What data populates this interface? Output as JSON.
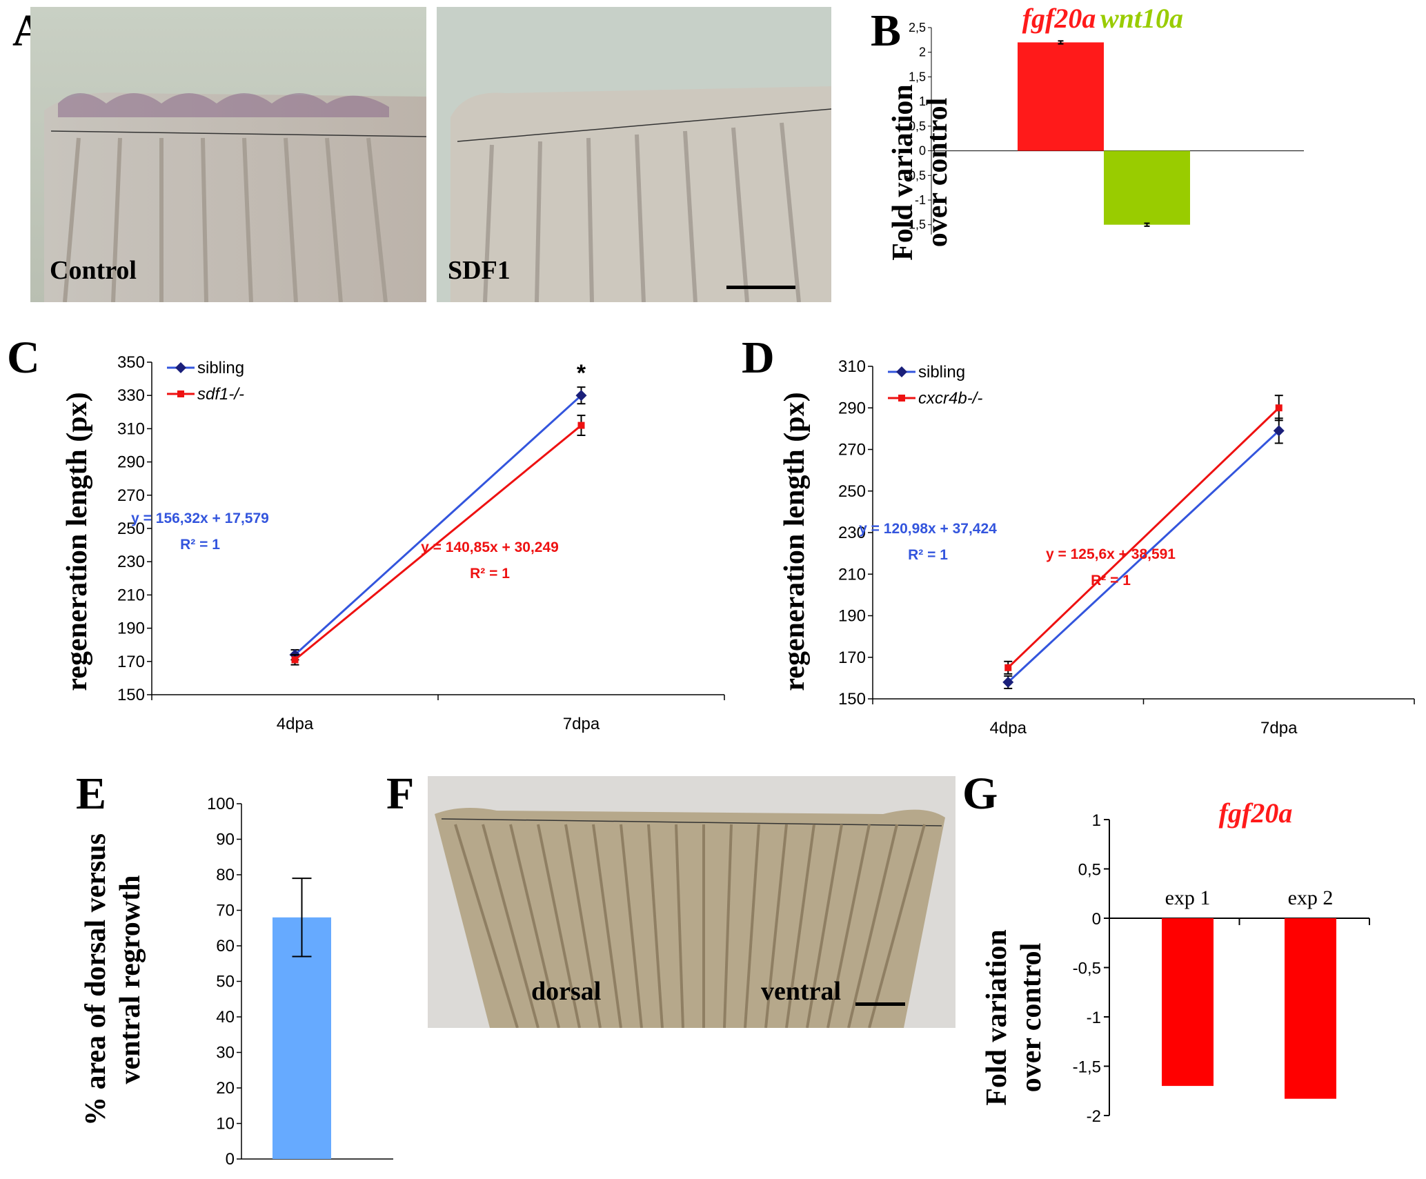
{
  "panels": {
    "A": {
      "letter": "A",
      "left_label": "Control",
      "right_label": "SDF1"
    },
    "B": {
      "letter": "B",
      "ylabel_line1": "Fold variation",
      "ylabel_line2": "over control",
      "gene1": "fgf20a",
      "gene2": "wnt10a",
      "colors": {
        "gene1": "#ff1a1a",
        "gene2": "#99cc00"
      }
    },
    "C": {
      "letter": "C"
    },
    "D": {
      "letter": "D"
    },
    "E": {
      "letter": "E",
      "ylabel_line1": "% area of dorsal versus",
      "ylabel_line2": "ventral regrowth"
    },
    "F": {
      "letter": "F",
      "left_label": "dorsal",
      "right_label": "ventral"
    },
    "G": {
      "letter": "G",
      "ylabel_line1": "Fold variation",
      "ylabel_line2": "over control",
      "gene": "fgf20a"
    }
  },
  "chart_data": [
    {
      "id": "B",
      "type": "bar",
      "categories": [
        "fgf20a",
        "wnt10a"
      ],
      "values": [
        2.2,
        -1.5
      ],
      "errors": [
        0.03,
        0.03
      ],
      "colors": [
        "#ff1a1a",
        "#99cc00"
      ],
      "ylabel": "Fold variation over control",
      "ylim": [
        -1.7,
        2.5
      ],
      "yticks": [
        "2,5",
        "2",
        "1,5",
        "1",
        "0,5",
        "0",
        "-0,5",
        "-1",
        "-1,5"
      ]
    },
    {
      "id": "C",
      "type": "line",
      "x": [
        "4dpa",
        "7dpa"
      ],
      "ylabel": "regeneration length (px)",
      "ylim": [
        150,
        350
      ],
      "yticks": [
        "350",
        "330",
        "310",
        "290",
        "270",
        "250",
        "230",
        "210",
        "190",
        "170",
        "150"
      ],
      "series": [
        {
          "name": "sibling",
          "values": [
            174,
            330
          ],
          "errors": [
            3,
            5
          ],
          "color": "#3355dd",
          "marker": "diamond",
          "equation": "y = 156,32x + 17,579",
          "r2": "R² = 1"
        },
        {
          "name": "sdf1-/-",
          "values": [
            171,
            312
          ],
          "errors": [
            3,
            6
          ],
          "color": "#ee1111",
          "marker": "square",
          "equation": "y = 140,85x + 30,249",
          "r2": "R² = 1"
        }
      ],
      "annotation": "*",
      "legend": "top-left"
    },
    {
      "id": "D",
      "type": "line",
      "x": [
        "4dpa",
        "7dpa"
      ],
      "ylabel": "regeneration length (px)",
      "ylim": [
        150,
        310
      ],
      "yticks": [
        "310",
        "290",
        "270",
        "250",
        "230",
        "210",
        "190",
        "170",
        "150"
      ],
      "series": [
        {
          "name": "sibling",
          "values": [
            158,
            279
          ],
          "errors": [
            3,
            6
          ],
          "color": "#3355dd",
          "marker": "diamond",
          "equation": "y = 120,98x + 37,424",
          "r2": "R² = 1"
        },
        {
          "name": "cxcr4b-/-",
          "values": [
            165,
            290
          ],
          "errors": [
            3,
            6
          ],
          "color": "#ee1111",
          "marker": "square",
          "equation": "y = 125,6x + 38,591",
          "r2": "R² = 1"
        }
      ],
      "legend": "top-left"
    },
    {
      "id": "E",
      "type": "bar",
      "categories": [
        ""
      ],
      "values": [
        68
      ],
      "errors": [
        11
      ],
      "colors": [
        "#66aaff"
      ],
      "ylabel": "% area of dorsal versus ventral regrowth",
      "ylim": [
        0,
        100
      ],
      "yticks": [
        "100",
        "90",
        "80",
        "70",
        "60",
        "50",
        "40",
        "30",
        "20",
        "10",
        "0"
      ]
    },
    {
      "id": "G",
      "type": "bar",
      "categories": [
        "exp 1",
        "exp 2"
      ],
      "values": [
        -1.7,
        -1.83
      ],
      "colors": [
        "#ff0000",
        "#ff0000"
      ],
      "title": "fgf20a",
      "ylabel": "Fold variation over control",
      "ylim": [
        -2,
        1
      ],
      "yticks": [
        "1",
        "0,5",
        "0",
        "-0,5",
        "-1",
        "-1,5",
        "-2"
      ]
    }
  ]
}
